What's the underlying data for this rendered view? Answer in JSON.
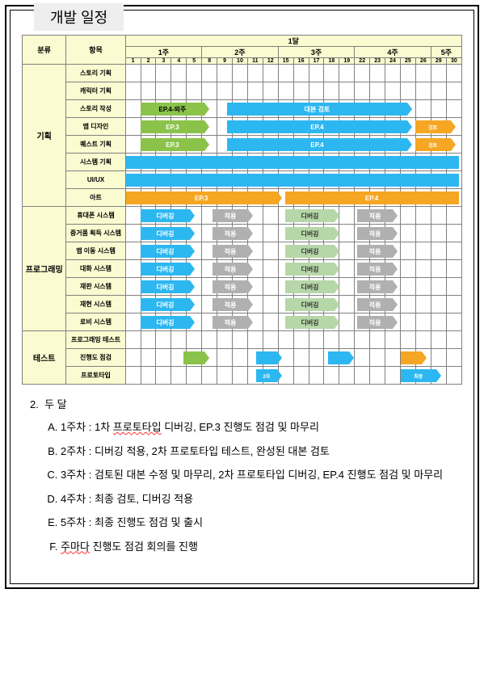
{
  "pageTitle": "개발 일정",
  "colors": {
    "green": "#8bc34a",
    "blue": "#2db7f0",
    "orange": "#f5a623",
    "gray": "#b0b0b0",
    "ltgreen": "#b6d7a8",
    "ltblue": "#99cce8",
    "header": "#fafbd0"
  },
  "header": {
    "cat": "분류",
    "item": "항목",
    "month": "1달",
    "weeks": [
      "1주",
      "2주",
      "3주",
      "4주",
      "5주"
    ],
    "perWeek": [
      5,
      5,
      5,
      5,
      2
    ],
    "days": [
      "1",
      "2",
      "3",
      "4",
      "5",
      "8",
      "9",
      "10",
      "11",
      "12",
      "15",
      "16",
      "17",
      "18",
      "19",
      "22",
      "23",
      "24",
      "25",
      "26",
      "29",
      "30"
    ]
  },
  "groups": [
    {
      "name": "기획",
      "rows": [
        {
          "item": "스토리 기획",
          "bars": []
        },
        {
          "item": "캐릭터 기획",
          "bars": []
        },
        {
          "item": "스토리 작성",
          "bars": [
            {
              "start": 1,
              "span": 5,
              "color": "#8bc34a",
              "label": "EP.4-외주",
              "text": "#000"
            },
            {
              "start": 7,
              "span": 13,
              "color": "#2db7f0",
              "label": "대본 검토"
            }
          ]
        },
        {
          "item": "맵 디자인",
          "bars": [
            {
              "start": 1,
              "span": 5,
              "color": "#8bc34a",
              "label": "EP.3"
            },
            {
              "start": 7,
              "span": 13,
              "color": "#2db7f0",
              "label": "EP.4"
            },
            {
              "start": 20,
              "span": 3,
              "color": "#f5a623",
              "label": "검토",
              "small": true
            }
          ]
        },
        {
          "item": "퀘스트 기획",
          "bars": [
            {
              "start": 1,
              "span": 5,
              "color": "#8bc34a",
              "label": "EP.3"
            },
            {
              "start": 7,
              "span": 13,
              "color": "#2db7f0",
              "label": "EP.4"
            },
            {
              "start": 20,
              "span": 3,
              "color": "#f5a623",
              "label": "검토",
              "small": true
            }
          ]
        },
        {
          "item": "시스템 기획",
          "bars": [
            {
              "start": 0,
              "span": 23,
              "color": "#2db7f0",
              "label": "",
              "noArrow": true
            }
          ]
        },
        {
          "item": "UI/UX",
          "bars": [
            {
              "start": 0,
              "span": 23,
              "color": "#2db7f0",
              "label": "",
              "noArrow": true
            }
          ]
        },
        {
          "item": "아트",
          "bars": [
            {
              "start": 0,
              "span": 11,
              "color": "#f5a623",
              "label": "EP.3"
            },
            {
              "start": 11,
              "span": 12,
              "color": "#f5a623",
              "label": "EP.4",
              "noArrow": true
            }
          ]
        }
      ]
    },
    {
      "name": "프로그래밍",
      "rows": [
        {
          "item": "휴대폰 시스템",
          "twoLine": true,
          "bars": [
            {
              "start": 1,
              "span": 4,
              "color": "#2db7f0",
              "label": "디버깅"
            },
            {
              "start": 6,
              "span": 3,
              "color": "#b0b0b0",
              "label": "적용"
            },
            {
              "start": 11,
              "span": 4,
              "color": "#b6d7a8",
              "label": "디버깅",
              "text": "#333"
            },
            {
              "start": 16,
              "span": 3,
              "color": "#b0b0b0",
              "label": "적용"
            }
          ]
        },
        {
          "item": "증거품 획득 시스템",
          "twoLine": true,
          "bars": [
            {
              "start": 1,
              "span": 4,
              "color": "#2db7f0",
              "label": "디버깅"
            },
            {
              "start": 6,
              "span": 3,
              "color": "#b0b0b0",
              "label": "적용"
            },
            {
              "start": 11,
              "span": 4,
              "color": "#b6d7a8",
              "label": "디버깅",
              "text": "#333"
            },
            {
              "start": 16,
              "span": 3,
              "color": "#b0b0b0",
              "label": "적용"
            }
          ]
        },
        {
          "item": "맵 이동 시스템",
          "bars": [
            {
              "start": 1,
              "span": 4,
              "color": "#2db7f0",
              "label": "디버깅"
            },
            {
              "start": 6,
              "span": 3,
              "color": "#b0b0b0",
              "label": "적용"
            },
            {
              "start": 11,
              "span": 4,
              "color": "#b6d7a8",
              "label": "디버깅",
              "text": "#333"
            },
            {
              "start": 16,
              "span": 3,
              "color": "#b0b0b0",
              "label": "적용"
            }
          ]
        },
        {
          "item": "대화 시스템",
          "bars": [
            {
              "start": 1,
              "span": 4,
              "color": "#2db7f0",
              "label": "디버깅"
            },
            {
              "start": 6,
              "span": 3,
              "color": "#b0b0b0",
              "label": "적용"
            },
            {
              "start": 11,
              "span": 4,
              "color": "#b6d7a8",
              "label": "디버깅",
              "text": "#333"
            },
            {
              "start": 16,
              "span": 3,
              "color": "#b0b0b0",
              "label": "적용"
            }
          ]
        },
        {
          "item": "재판 시스템",
          "bars": [
            {
              "start": 1,
              "span": 4,
              "color": "#2db7f0",
              "label": "디버깅"
            },
            {
              "start": 6,
              "span": 3,
              "color": "#b0b0b0",
              "label": "적용"
            },
            {
              "start": 11,
              "span": 4,
              "color": "#b6d7a8",
              "label": "디버깅",
              "text": "#333"
            },
            {
              "start": 16,
              "span": 3,
              "color": "#b0b0b0",
              "label": "적용"
            }
          ]
        },
        {
          "item": "재현 시스템",
          "bars": [
            {
              "start": 1,
              "span": 4,
              "color": "#2db7f0",
              "label": "디버깅"
            },
            {
              "start": 6,
              "span": 3,
              "color": "#b0b0b0",
              "label": "적용"
            },
            {
              "start": 11,
              "span": 4,
              "color": "#b6d7a8",
              "label": "디버깅",
              "text": "#333"
            },
            {
              "start": 16,
              "span": 3,
              "color": "#b0b0b0",
              "label": "적용"
            }
          ]
        },
        {
          "item": "로비 시스템",
          "bars": [
            {
              "start": 1,
              "span": 4,
              "color": "#2db7f0",
              "label": "디버깅"
            },
            {
              "start": 6,
              "span": 3,
              "color": "#b0b0b0",
              "label": "적용"
            },
            {
              "start": 11,
              "span": 4,
              "color": "#b6d7a8",
              "label": "디버깅",
              "text": "#333"
            },
            {
              "start": 16,
              "span": 3,
              "color": "#b0b0b0",
              "label": "적용"
            }
          ]
        }
      ]
    },
    {
      "name": "테스트",
      "rows": [
        {
          "item": "프로그래밍 테스트",
          "twoLine": true,
          "bars": []
        },
        {
          "item": "진행도 점검",
          "bars": [
            {
              "start": 4,
              "span": 2,
              "color": "#8bc34a",
              "label": ""
            },
            {
              "start": 9,
              "span": 2,
              "color": "#2db7f0",
              "label": ""
            },
            {
              "start": 14,
              "span": 2,
              "color": "#2db7f0",
              "label": ""
            },
            {
              "start": 19,
              "span": 2,
              "color": "#f5a623",
              "label": ""
            }
          ]
        },
        {
          "item": "프로토타입",
          "bars": [
            {
              "start": 9,
              "span": 2,
              "color": "#2db7f0",
              "label": "2차",
              "small": true
            },
            {
              "start": 19,
              "span": 3,
              "color": "#2db7f0",
              "label": "최종",
              "small": true
            }
          ]
        }
      ]
    }
  ],
  "notes": {
    "num": "2.",
    "title": "두 달",
    "items": [
      "1주차 : 1차 <u>프로토타입</u> 디버깅, EP.3 진행도 점검 및 마무리",
      "2주차 : 디버깅 적용, 2차 프로토타입 테스트, 완성된 대본 검토",
      "3주차 : 검토된 대본 수정 및 마무리, 2차 프로토타입 디버깅, EP.4 진행도 점검 및 마무리",
      "4주차 : 최종 검토, 디버깅 적용",
      "5주차 : 최종 진행도 점검 및 출시",
      "<u>주마다</u> 진행도 점검 회의를 진행"
    ]
  }
}
